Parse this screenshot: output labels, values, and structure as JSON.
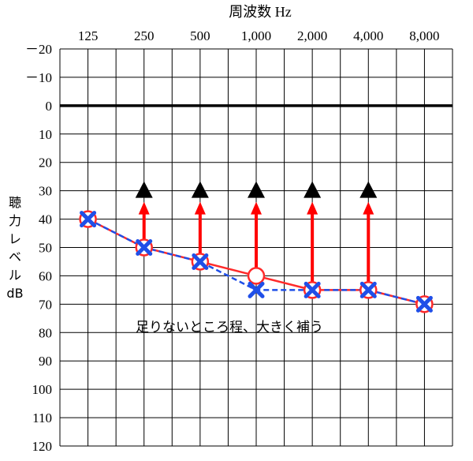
{
  "chart_data": {
    "type": "line",
    "title": "周波数 Hz",
    "ylabel_lines": [
      "聴",
      "力",
      "レ",
      "ベ",
      "ル",
      "dB"
    ],
    "categories": [
      "125",
      "250",
      "500",
      "1,000",
      "2,000",
      "4,000",
      "8,000"
    ],
    "yticks": [
      -20,
      -10,
      0,
      10,
      20,
      30,
      40,
      50,
      60,
      70,
      80,
      90,
      100,
      110,
      120
    ],
    "ytick_labels": [
      "－20",
      "－10",
      "0",
      "10",
      "20",
      "30",
      "40",
      "50",
      "60",
      "70",
      "80",
      "90",
      "100",
      "110",
      "120"
    ],
    "ylim": [
      -20,
      120
    ],
    "y_inverted": true,
    "grid": true,
    "series": [
      {
        "marker": "circle",
        "style": "solid",
        "color": "#ff2a2a",
        "values": [
          40,
          50,
          55,
          60,
          65,
          65,
          70
        ]
      },
      {
        "marker": "cross",
        "style": "dashed",
        "color": "#1f4fe8",
        "values": [
          40,
          50,
          55,
          65,
          65,
          65,
          70
        ]
      },
      {
        "marker": "triangle",
        "style": "none",
        "color": "#000000",
        "values": [
          null,
          30,
          30,
          30,
          30,
          30,
          null
        ]
      }
    ],
    "arrows": [
      {
        "x": "250",
        "from": 50,
        "to": 35
      },
      {
        "x": "500",
        "from": 55,
        "to": 35
      },
      {
        "x": "1,000",
        "from": 60,
        "to": 35
      },
      {
        "x": "2,000",
        "from": 65,
        "to": 35
      },
      {
        "x": "4,000",
        "from": 65,
        "to": 35
      }
    ],
    "annotation": "足りないところ程、大きく補う",
    "colors": {
      "grid": "#000000",
      "zero_line": "#000000",
      "arrow": "#ff0000"
    }
  }
}
